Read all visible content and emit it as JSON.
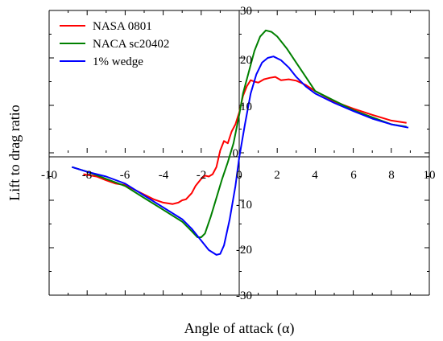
{
  "chart_data": {
    "type": "line",
    "xlabel": "Angle of attack (α)",
    "ylabel": "Lift to drag ratio",
    "xlim": [
      -10,
      10
    ],
    "ylim": [
      -30,
      30
    ],
    "x_ticks": [
      "-10",
      "-8",
      "-6",
      "-4",
      "-2",
      "0",
      "2",
      "4",
      "6",
      "8",
      "10"
    ],
    "y_ticks": [
      "30",
      "20",
      "10",
      "0",
      "-10",
      "-20",
      "-30"
    ],
    "grid": false,
    "legend_position": "top-left",
    "series": [
      {
        "name": "NASA 0801",
        "color": "#ff0000",
        "points": [
          [
            -8.2,
            -4.5
          ],
          [
            -7.5,
            -5.0
          ],
          [
            -7.0,
            -5.8
          ],
          [
            -6.5,
            -6.5
          ],
          [
            -6.0,
            -6.8
          ],
          [
            -5.5,
            -7.8
          ],
          [
            -5.0,
            -8.8
          ],
          [
            -4.5,
            -9.8
          ],
          [
            -4.0,
            -10.5
          ],
          [
            -3.5,
            -10.8
          ],
          [
            -3.2,
            -10.5
          ],
          [
            -3.0,
            -10.0
          ],
          [
            -2.8,
            -9.8
          ],
          [
            -2.5,
            -8.5
          ],
          [
            -2.3,
            -7.0
          ],
          [
            -2.0,
            -5.5
          ],
          [
            -1.8,
            -4.8
          ],
          [
            -1.6,
            -5.0
          ],
          [
            -1.4,
            -4.5
          ],
          [
            -1.2,
            -3.0
          ],
          [
            -1.0,
            0.5
          ],
          [
            -0.8,
            2.5
          ],
          [
            -0.6,
            2.0
          ],
          [
            -0.4,
            4.5
          ],
          [
            -0.2,
            6.0
          ],
          [
            0.0,
            8.5
          ],
          [
            0.2,
            12.0
          ],
          [
            0.4,
            14.0
          ],
          [
            0.6,
            15.3
          ],
          [
            0.8,
            15.0
          ],
          [
            1.0,
            14.8
          ],
          [
            1.3,
            15.5
          ],
          [
            1.6,
            15.8
          ],
          [
            1.9,
            16.0
          ],
          [
            2.2,
            15.3
          ],
          [
            2.6,
            15.5
          ],
          [
            3.0,
            15.2
          ],
          [
            3.5,
            14.3
          ],
          [
            4.0,
            13.0
          ],
          [
            5.0,
            10.8
          ],
          [
            6.0,
            9.3
          ],
          [
            7.0,
            8.0
          ],
          [
            8.0,
            6.8
          ],
          [
            8.8,
            6.3
          ]
        ]
      },
      {
        "name": "NACA sc20402",
        "color": "#008000",
        "points": [
          [
            -8.8,
            -3.0
          ],
          [
            -8.0,
            -4.0
          ],
          [
            -7.0,
            -5.5
          ],
          [
            -6.0,
            -7.0
          ],
          [
            -5.0,
            -9.5
          ],
          [
            -4.0,
            -12.0
          ],
          [
            -3.0,
            -14.5
          ],
          [
            -2.5,
            -16.5
          ],
          [
            -2.2,
            -17.8
          ],
          [
            -2.0,
            -17.8
          ],
          [
            -1.8,
            -17.0
          ],
          [
            -1.5,
            -13.5
          ],
          [
            -1.2,
            -9.5
          ],
          [
            -0.9,
            -5.5
          ],
          [
            -0.6,
            -2.0
          ],
          [
            -0.3,
            2.0
          ],
          [
            0.0,
            8.0
          ],
          [
            0.2,
            12.5
          ],
          [
            0.5,
            17.0
          ],
          [
            0.8,
            21.5
          ],
          [
            1.1,
            24.5
          ],
          [
            1.4,
            25.8
          ],
          [
            1.7,
            25.5
          ],
          [
            2.0,
            24.5
          ],
          [
            2.5,
            22.0
          ],
          [
            3.0,
            19.0
          ],
          [
            3.5,
            16.0
          ],
          [
            4.0,
            13.0
          ],
          [
            5.0,
            11.0
          ],
          [
            6.0,
            9.0
          ],
          [
            7.0,
            7.5
          ],
          [
            8.0,
            6.0
          ],
          [
            8.8,
            5.5
          ]
        ]
      },
      {
        "name": "1% wedge",
        "color": "#0000ff",
        "points": [
          [
            -8.8,
            -3.0
          ],
          [
            -8.0,
            -4.0
          ],
          [
            -7.0,
            -5.0
          ],
          [
            -6.0,
            -6.5
          ],
          [
            -5.0,
            -9.0
          ],
          [
            -4.0,
            -11.5
          ],
          [
            -3.0,
            -14.0
          ],
          [
            -2.5,
            -16.0
          ],
          [
            -2.0,
            -18.5
          ],
          [
            -1.6,
            -20.5
          ],
          [
            -1.2,
            -21.5
          ],
          [
            -1.0,
            -21.3
          ],
          [
            -0.8,
            -19.5
          ],
          [
            -0.5,
            -14.0
          ],
          [
            -0.2,
            -7.0
          ],
          [
            0.0,
            -1.0
          ],
          [
            0.3,
            6.0
          ],
          [
            0.6,
            12.5
          ],
          [
            0.9,
            16.5
          ],
          [
            1.2,
            19.0
          ],
          [
            1.5,
            20.0
          ],
          [
            1.8,
            20.3
          ],
          [
            2.2,
            19.5
          ],
          [
            2.6,
            18.0
          ],
          [
            3.0,
            16.0
          ],
          [
            3.5,
            14.0
          ],
          [
            4.0,
            12.5
          ],
          [
            5.0,
            10.5
          ],
          [
            6.0,
            8.8
          ],
          [
            7.0,
            7.2
          ],
          [
            8.0,
            6.0
          ],
          [
            8.9,
            5.3
          ]
        ]
      }
    ]
  }
}
